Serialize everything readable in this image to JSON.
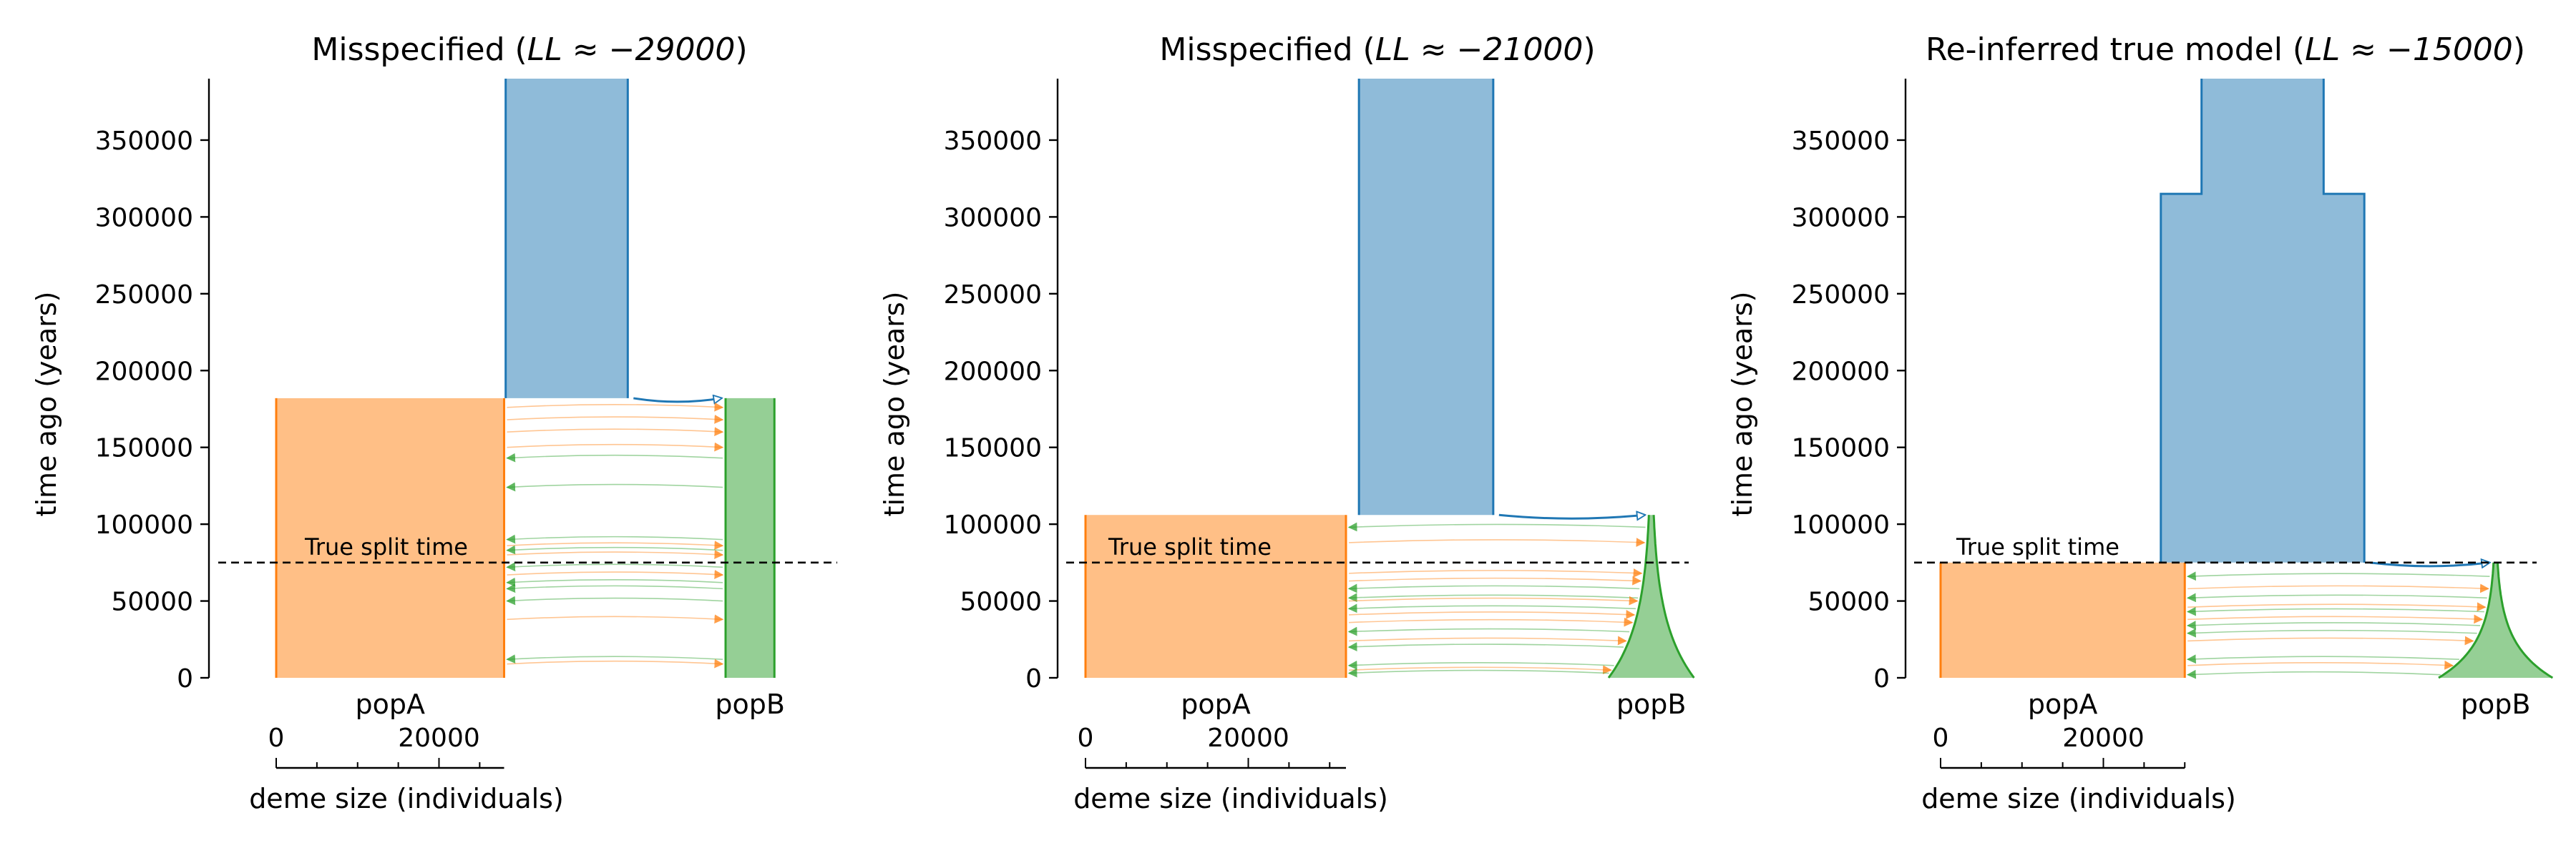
{
  "chart_data": [
    {
      "type": "area",
      "title": "Misspecified (",
      "title_math": "LL ≈ −29000",
      "title_close": ")",
      "ylabel": "time ago (years)",
      "xlabel": "deme size (individuals)",
      "ylim": [
        0,
        390000
      ],
      "yticks": [
        0,
        50000,
        100000,
        150000,
        200000,
        250000,
        300000,
        350000
      ],
      "ytick_labels": [
        "0",
        "50000",
        "100000",
        "150000",
        "200000",
        "250000",
        "300000",
        "350000"
      ],
      "size_ticks": [
        0,
        20000
      ],
      "size_tick_labels": [
        "0",
        "20000"
      ],
      "split_label": "True split time",
      "split_time": 75000,
      "demes": [
        {
          "name": "ancestor",
          "label": "",
          "color": "#1f77b4",
          "start_time": 390000,
          "end_time": 182000,
          "epochs": [
            {
              "start_time": 390000,
              "end_time": 182000,
              "start_size": 15000,
              "end_size": 15000
            }
          ]
        },
        {
          "name": "popA",
          "label": "popA",
          "color": "#ff7f0e",
          "start_time": 182000,
          "end_time": 0,
          "epochs": [
            {
              "start_time": 182000,
              "end_time": 0,
              "start_size": 28000,
              "end_size": 28000
            }
          ]
        },
        {
          "name": "popB",
          "label": "popB",
          "color": "#2ca02c",
          "start_time": 182000,
          "end_time": 0,
          "epochs": [
            {
              "start_time": 182000,
              "end_time": 0,
              "start_size": 6000,
              "end_size": 6000
            }
          ]
        }
      ],
      "migration_times": [
        176000,
        168000,
        160000,
        150000,
        143000,
        124000,
        90000,
        86000,
        83000,
        80000,
        72000,
        67000,
        62000,
        58000,
        50000,
        38000,
        12000,
        9000
      ],
      "migration_dirs": [
        "AB",
        "AB",
        "AB",
        "AB",
        "BA",
        "BA",
        "BA",
        "AB",
        "BA",
        "AB",
        "BA",
        "AB",
        "BA",
        "BA",
        "BA",
        "AB",
        "BA",
        "AB"
      ]
    },
    {
      "type": "area",
      "title": "Misspecified (",
      "title_math": "LL ≈ −21000",
      "title_close": ")",
      "ylabel": "time ago (years)",
      "xlabel": "deme size (individuals)",
      "ylim": [
        0,
        390000
      ],
      "yticks": [
        0,
        50000,
        100000,
        150000,
        200000,
        250000,
        300000,
        350000
      ],
      "ytick_labels": [
        "0",
        "50000",
        "100000",
        "150000",
        "200000",
        "250000",
        "300000",
        "350000"
      ],
      "size_ticks": [
        0,
        20000
      ],
      "size_tick_labels": [
        "0",
        "20000"
      ],
      "split_label": "True split time",
      "split_time": 75000,
      "demes": [
        {
          "name": "ancestor",
          "label": "",
          "color": "#1f77b4",
          "start_time": 390000,
          "end_time": 106000,
          "epochs": [
            {
              "start_time": 390000,
              "end_time": 106000,
              "start_size": 16500,
              "end_size": 16500
            }
          ]
        },
        {
          "name": "popA",
          "label": "popA",
          "color": "#ff7f0e",
          "start_time": 106000,
          "end_time": 0,
          "epochs": [
            {
              "start_time": 106000,
              "end_time": 0,
              "start_size": 32000,
              "end_size": 32000
            }
          ]
        },
        {
          "name": "popB",
          "label": "popB",
          "color": "#2ca02c",
          "start_time": 106000,
          "end_time": 0,
          "epochs": [
            {
              "start_time": 106000,
              "end_time": 0,
              "start_size": 600,
              "end_size": 10500
            }
          ]
        }
      ],
      "migration_times": [
        98000,
        88000,
        68000,
        63000,
        58000,
        52000,
        50000,
        45000,
        41000,
        36000,
        30000,
        24000,
        20000,
        8000,
        5000,
        3000
      ],
      "migration_dirs": [
        "BA",
        "AB",
        "AB",
        "AB",
        "BA",
        "BA",
        "AB",
        "BA",
        "AB",
        "AB",
        "BA",
        "AB",
        "BA",
        "BA",
        "AB",
        "BA"
      ]
    },
    {
      "type": "area",
      "title": "Re-inferred true model (",
      "title_math": "LL ≈ −15000",
      "title_close": ")",
      "ylabel": "time ago (years)",
      "xlabel": "deme size (individuals)",
      "ylim": [
        0,
        390000
      ],
      "yticks": [
        0,
        50000,
        100000,
        150000,
        200000,
        250000,
        300000,
        350000
      ],
      "ytick_labels": [
        "0",
        "50000",
        "100000",
        "150000",
        "200000",
        "250000",
        "300000",
        "350000"
      ],
      "size_ticks": [
        0,
        20000
      ],
      "size_tick_labels": [
        "0",
        "20000"
      ],
      "split_label": "True split time",
      "split_time": 75000,
      "demes": [
        {
          "name": "ancestor",
          "label": "",
          "color": "#1f77b4",
          "start_time": 390000,
          "end_time": 75000,
          "epochs": [
            {
              "start_time": 390000,
              "end_time": 315000,
              "start_size": 15000,
              "end_size": 15000
            },
            {
              "start_time": 315000,
              "end_time": 75000,
              "start_size": 25000,
              "end_size": 25000
            }
          ]
        },
        {
          "name": "popA",
          "label": "popA",
          "color": "#ff7f0e",
          "start_time": 75000,
          "end_time": 0,
          "epochs": [
            {
              "start_time": 75000,
              "end_time": 0,
              "start_size": 30000,
              "end_size": 30000
            }
          ]
        },
        {
          "name": "popB",
          "label": "popB",
          "color": "#2ca02c",
          "start_time": 75000,
          "end_time": 0,
          "epochs": [
            {
              "start_time": 75000,
              "end_time": 0,
              "start_size": 500,
              "end_size": 14000
            }
          ]
        }
      ],
      "migration_times": [
        66000,
        58000,
        52000,
        46000,
        43000,
        38000,
        34000,
        29000,
        24000,
        12000,
        8000,
        2000
      ],
      "migration_dirs": [
        "BA",
        "AB",
        "BA",
        "AB",
        "BA",
        "AB",
        "BA",
        "BA",
        "AB",
        "BA",
        "AB",
        "BA"
      ]
    }
  ]
}
